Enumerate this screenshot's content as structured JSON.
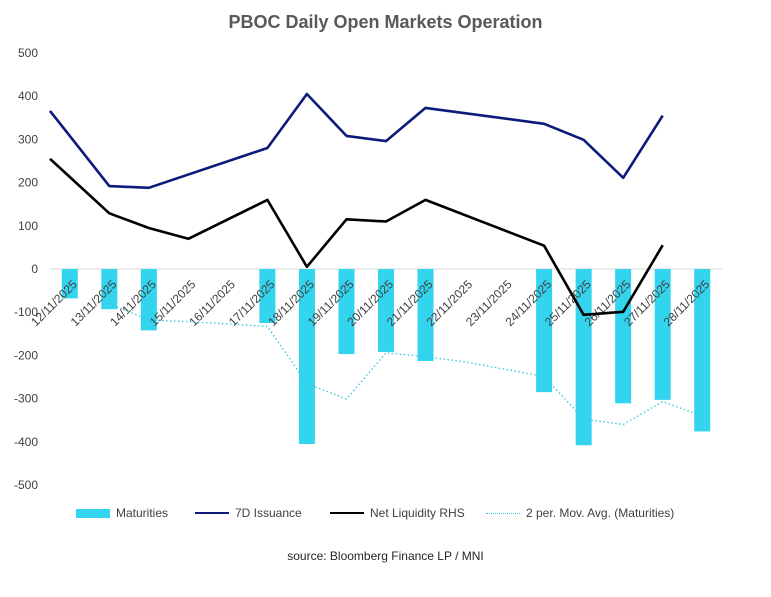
{
  "chart_data": {
    "type": "bar",
    "title": "PBOC Daily Open Markets Operation",
    "source": "source:  Bloomberg Finance LP / MNI",
    "categories": [
      "12/11/2025",
      "13/11/2025",
      "14/11/2025",
      "15/11/2025",
      "16/11/2025",
      "17/11/2025",
      "18/11/2025",
      "19/11/2025",
      "20/11/2025",
      "21/11/2025",
      "22/11/2025",
      "23/11/2025",
      "24/11/2025",
      "25/11/2025",
      "26/11/2025",
      "27/11/2025",
      "28/11/2025"
    ],
    "y_ticks": [
      "500",
      "400",
      "300",
      "200",
      "100",
      "0",
      "-100",
      "-200",
      "-300",
      "-400",
      "-500"
    ],
    "ylim": [
      -500,
      500
    ],
    "xlabel": "",
    "ylabel": "",
    "series": [
      {
        "name": "Maturities",
        "kind": "bar",
        "color": "#33d4ee",
        "values": [
          -68,
          -93,
          -142,
          null,
          null,
          -125,
          -405,
          -197,
          -192,
          -213,
          null,
          null,
          -285,
          -408,
          -311,
          -303,
          -376
        ]
      },
      {
        "name": "7D Issuance",
        "kind": "line",
        "color": "#0d1a7a",
        "dash": "solid",
        "values": [
          308,
          192,
          188,
          null,
          null,
          280,
          405,
          308,
          296,
          373,
          null,
          null,
          336,
          299,
          211,
          355,
          null
        ]
      },
      {
        "name": "Net Liquidity RHS",
        "kind": "line",
        "color": "#000000",
        "dash": "solid",
        "values": [
          213,
          129,
          95,
          70,
          null,
          160,
          5,
          115,
          110,
          160,
          null,
          null,
          54,
          -106,
          -99,
          55,
          null
        ]
      },
      {
        "name": "2 per. Mov. Avg. (Maturities)",
        "kind": "line",
        "color": "#33c6de",
        "dash": "dotted",
        "values": [
          null,
          -80,
          -118,
          -122,
          -127,
          -133,
          -265,
          -301,
          -194,
          -203,
          -215,
          -232,
          -249,
          -347,
          -360,
          -307,
          -340
        ]
      }
    ]
  }
}
